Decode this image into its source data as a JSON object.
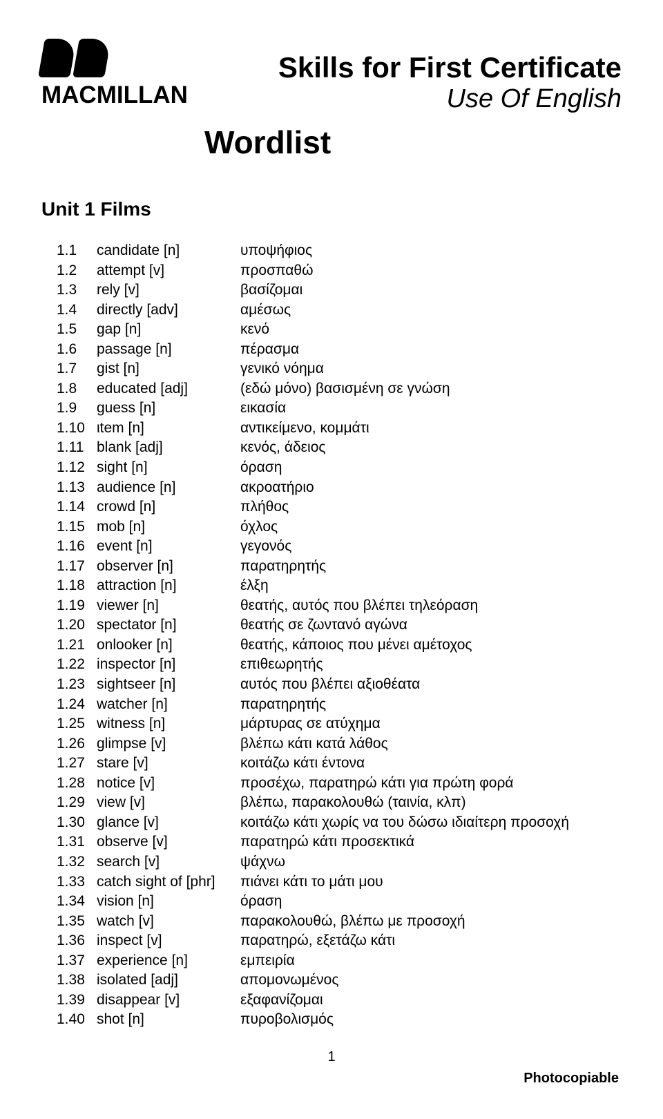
{
  "logo": {
    "brand": "MACMILLAN"
  },
  "header": {
    "title_main": "Skills for First Certificate",
    "title_sub": "Use Of English",
    "wordlist": "Wordlist"
  },
  "unit_title": "Unit 1 Films",
  "entries": [
    {
      "num": "1.1",
      "term": "candidate [n]",
      "def": "υποψήφιος"
    },
    {
      "num": "1.2",
      "term": "attempt [v]",
      "def": "προσπαθώ"
    },
    {
      "num": "1.3",
      "term": "rely [v]",
      "def": "βασίζομαι"
    },
    {
      "num": "1.4",
      "term": "directly [adv]",
      "def": "αμέσως"
    },
    {
      "num": "1.5",
      "term": "gap [n]",
      "def": "κενό"
    },
    {
      "num": "1.6",
      "term": "passage [n]",
      "def": "πέρασμα"
    },
    {
      "num": "1.7",
      "term": "gist [n]",
      "def": "γενικό νόημα"
    },
    {
      "num": "1.8",
      "term": "educated [adj]",
      "def": "(εδώ μόνο) βασισμένη σε γνώση"
    },
    {
      "num": "1.9",
      "term": "guess [n]",
      "def": "εικασία"
    },
    {
      "num": "1.10",
      "term": "ιtem [n]",
      "def": "αντικείμενο, κομμάτι"
    },
    {
      "num": "1.11",
      "term": "blank [adj]",
      "def": "κενός, άδειος"
    },
    {
      "num": "1.12",
      "term": "sight [n]",
      "def": "όραση"
    },
    {
      "num": "1.13",
      "term": "audience [n]",
      "def": "ακροατήριο"
    },
    {
      "num": "1.14",
      "term": "crowd [n]",
      "def": "πλήθος"
    },
    {
      "num": "1.15",
      "term": "mob [n]",
      "def": "όχλος"
    },
    {
      "num": "1.16",
      "term": "event [n]",
      "def": "γεγονός"
    },
    {
      "num": "1.17",
      "term": "observer [n]",
      "def": "παρατηρητής"
    },
    {
      "num": "1.18",
      "term": "attraction [n]",
      "def": "έλξη"
    },
    {
      "num": "1.19",
      "term": "viewer [n]",
      "def": "θεατής, αυτός που βλέπει τηλεόραση"
    },
    {
      "num": "1.20",
      "term": "spectator [n]",
      "def": "θεατής σε ζωντανό αγώνα"
    },
    {
      "num": "1.21",
      "term": "onlooker [n]",
      "def": "θεατής, κάποιος που μένει αμέτοχος"
    },
    {
      "num": "1.22",
      "term": "inspector [n]",
      "def": "επιθεωρητής"
    },
    {
      "num": "1.23",
      "term": "sightseer [n]",
      "def": "αυτός που βλέπει αξιοθέατα"
    },
    {
      "num": "1.24",
      "term": "watcher [n]",
      "def": "παρατηρητής"
    },
    {
      "num": "1.25",
      "term": "witness [n]",
      "def": "μάρτυρας σε ατύχημα"
    },
    {
      "num": "1.26",
      "term": "glimpse [v]",
      "def": "βλέπω κάτι κατά λάθος"
    },
    {
      "num": "1.27",
      "term": "stare [v]",
      "def": "κοιτάζω κάτι έντονα"
    },
    {
      "num": "1.28",
      "term": "notice [v]",
      "def": "προσέχω, παρατηρώ κάτι για πρώτη φορά"
    },
    {
      "num": "1.29",
      "term": "view [v]",
      "def": "βλέπω, παρακολουθώ (ταινία, κλπ)"
    },
    {
      "num": "1.30",
      "term": "glance [v]",
      "def": "κοιτάζω κάτι χωρίς να του δώσω ιδιαίτερη προσοχή"
    },
    {
      "num": "1.31",
      "term": "observe [v]",
      "def": "παρατηρώ κάτι προσεκτικά"
    },
    {
      "num": "1.32",
      "term": "search [v]",
      "def": "ψάχνω"
    },
    {
      "num": "1.33",
      "term": "catch sight of [phr]",
      "def": "πιάνει κάτι το μάτι μου"
    },
    {
      "num": "1.34",
      "term": "vision [n]",
      "def": "όραση"
    },
    {
      "num": "1.35",
      "term": "watch [v]",
      "def": "παρακολουθώ, βλέπω με προσοχή"
    },
    {
      "num": "1.36",
      "term": "inspect [v]",
      "def": "παρατηρώ, εξετάζω κάτι"
    },
    {
      "num": "1.37",
      "term": "experience [n]",
      "def": "εμπειρία"
    },
    {
      "num": "1.38",
      "term": "isolated [adj]",
      "def": "απομονωμένος"
    },
    {
      "num": "1.39",
      "term": "disappear [v]",
      "def": "εξαφανίζομαι"
    },
    {
      "num": "1.40",
      "term": "shot [n]",
      "def": "πυροβολισμός"
    }
  ],
  "page_number": "1",
  "footer": "Photocopiable"
}
